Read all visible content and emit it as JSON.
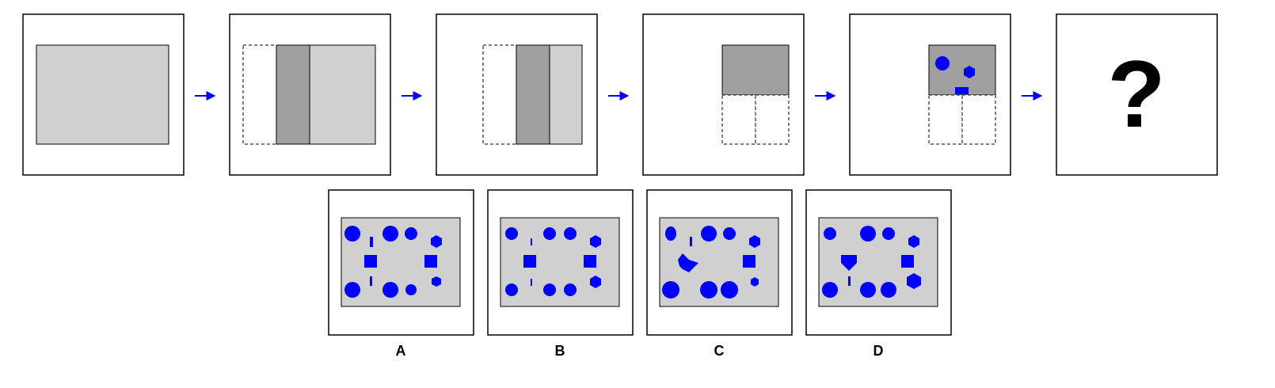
{
  "colors": {
    "frame": "#000000",
    "light_gray": "#d0d0d0",
    "dark_gray": "#a0a0a0",
    "shape_blue": "#0000ff",
    "arrow_blue": "#0000ff",
    "background": "#ffffff"
  },
  "sequence": {
    "steps": [
      "light-rectangle",
      "split-three-columns",
      "left-column-removed",
      "top-half-kept",
      "shapes-added"
    ],
    "question_mark": "?"
  },
  "options": {
    "labels": [
      "A",
      "B",
      "C",
      "D"
    ]
  }
}
